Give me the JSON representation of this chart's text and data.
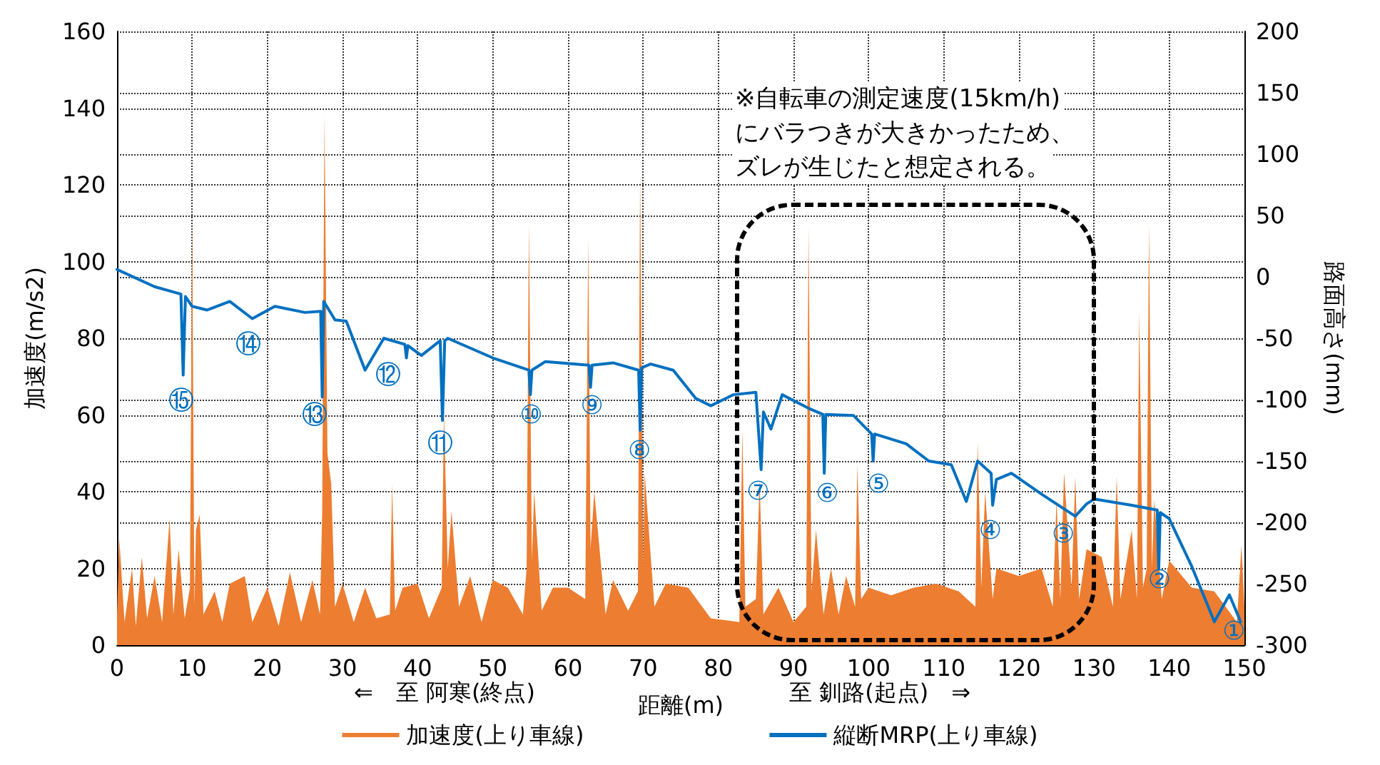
{
  "chart_data": {
    "type": "area",
    "xlabel": "距離(m)",
    "ylabel": "加速度(m/s2)",
    "y2label": "路面高さ(mm)",
    "xlim": [
      0,
      150
    ],
    "xticks": [
      0,
      10,
      20,
      30,
      40,
      50,
      60,
      70,
      80,
      90,
      100,
      110,
      120,
      130,
      140,
      150
    ],
    "ylim": [
      0,
      160
    ],
    "yticks": [
      0,
      20,
      40,
      60,
      80,
      100,
      120,
      140,
      160
    ],
    "y2lim": [
      -300,
      200
    ],
    "y2ticks": [
      -300,
      -250,
      -200,
      -150,
      -100,
      -50,
      0,
      50,
      100,
      150,
      200
    ],
    "grid": true,
    "legend": "bottom",
    "series": [
      {
        "name": "加速度(上り車線)",
        "color": "#ed7d31",
        "x": [
          0,
          0.3,
          1,
          2,
          2.5,
          3.3,
          4,
          5,
          6,
          7,
          7.5,
          8.2,
          9,
          9.7,
          10,
          10.3,
          10.5,
          11,
          11.5,
          13,
          14,
          15,
          17,
          18,
          20,
          21.5,
          23,
          24.5,
          26,
          27,
          27.3,
          27.6,
          28,
          28.5,
          29,
          30,
          31.5,
          33,
          34.5,
          36.3,
          36.6,
          37,
          38,
          40,
          41.5,
          43.2,
          43.5,
          44,
          44.5,
          45.5,
          47,
          48.5,
          50,
          52,
          54,
          54.5,
          54.8,
          55.2,
          55.5,
          56.5,
          58,
          60,
          62.3,
          62.7,
          63,
          63.5,
          65,
          66,
          68,
          69.3,
          69.6,
          70,
          70.2,
          71.5,
          73,
          76,
          79,
          82.8,
          83.2,
          83.6,
          85,
          85.5,
          86,
          88,
          90,
          91.7,
          92,
          92.4,
          93,
          94,
          95,
          96,
          97,
          98.2,
          98.5,
          99,
          100,
          103,
          106,
          109,
          112,
          114.2,
          114.5,
          115,
          115.5,
          116.5,
          117,
          120,
          123,
          124.5,
          125,
          125.5,
          126,
          127,
          127.5,
          128,
          129,
          131,
          132.5,
          133,
          133.5,
          135,
          135.7,
          136,
          136.5,
          137,
          137.3,
          137.7,
          138,
          139,
          140,
          143,
          146,
          149,
          149.6,
          150
        ],
        "values": [
          8,
          28,
          6,
          20,
          5,
          23,
          7,
          18,
          6,
          33,
          8,
          25,
          7,
          15,
          111,
          10,
          30,
          34,
          8,
          14,
          6,
          16,
          18,
          6,
          15,
          5,
          19,
          6,
          17,
          8,
          35,
          138,
          50,
          42,
          10,
          16,
          6,
          15,
          7,
          8,
          42,
          9,
          15,
          16,
          7,
          15,
          61,
          20,
          35,
          10,
          18,
          6,
          17,
          15,
          8,
          20,
          110,
          22,
          40,
          9,
          15,
          15,
          12,
          106,
          25,
          40,
          8,
          17,
          9,
          14,
          123,
          20,
          45,
          10,
          16,
          15,
          7,
          6,
          56,
          10,
          12,
          43,
          8,
          15,
          6,
          10,
          109,
          14,
          30,
          8,
          20,
          8,
          18,
          10,
          47,
          12,
          15,
          13,
          15,
          16,
          14,
          10,
          53,
          15,
          40,
          12,
          20,
          18,
          20,
          10,
          38,
          12,
          45,
          15,
          44,
          12,
          25,
          23,
          10,
          44,
          12,
          30,
          12,
          87,
          15,
          20,
          110,
          20,
          38,
          12,
          22,
          15,
          14,
          6,
          26,
          10
        ]
      },
      {
        "name": "縦断MRP(上り車線)",
        "type": "line",
        "axis": "y2",
        "color": "#0070c0",
        "x": [
          0,
          5,
          8.5,
          8.8,
          9.1,
          10,
          12,
          15,
          18,
          21,
          25,
          27.1,
          27.3,
          27.5,
          29,
          30.5,
          33,
          35.5,
          38.3,
          38.5,
          38.7,
          40.5,
          43,
          43.3,
          43.6,
          44,
          50,
          54.8,
          55,
          55.2,
          57,
          62.8,
          63,
          63.2,
          66,
          69.4,
          69.6,
          69.8,
          71,
          74,
          77,
          79,
          82,
          85,
          85.7,
          86,
          87,
          88.5,
          92,
          93.9,
          94.1,
          94.3,
          98,
          100.4,
          100.6,
          100.8,
          105,
          108,
          111,
          113,
          114.5,
          116.3,
          116.5,
          117,
          119,
          123,
          126,
          127.5,
          129,
          130,
          135,
          138.4,
          138.6,
          138.8,
          140,
          143,
          146,
          148,
          149.5
        ],
        "values": [
          6,
          -8,
          -14,
          -80,
          -16,
          -24,
          -27,
          -20,
          -34,
          -24,
          -29,
          -28,
          -98,
          -20,
          -35,
          -36,
          -76,
          -50,
          -55,
          -66,
          -56,
          -64,
          -52,
          -117,
          -52,
          -50,
          -66,
          -76,
          -96,
          -76,
          -69,
          -72,
          -90,
          -72,
          -70,
          -76,
          -125,
          -74,
          -71,
          -76,
          -99,
          -105,
          -96,
          -94,
          -157,
          -110,
          -124,
          -96,
          -107,
          -112,
          -160,
          -112,
          -113,
          -128,
          -150,
          -128,
          -136,
          -150,
          -153,
          -183,
          -150,
          -160,
          -186,
          -165,
          -160,
          -177,
          -189,
          -195,
          -185,
          -181,
          -186,
          -190,
          -238,
          -192,
          -197,
          -236,
          -281,
          -259,
          -281
        ]
      }
    ],
    "annotations": [
      "※自転車の測定速度(15km/h)",
      "にバラつきが大きかったため、",
      "ズレが生じたと想定される。",
      "⇐　至 阿寒(終点)",
      "至 釧路(起点)　⇒",
      "⑮",
      "⑭",
      "⑬",
      "⑫",
      "⑪",
      "⑩",
      "⑨",
      "⑧",
      "⑦",
      "⑥",
      "⑤",
      "④",
      "③",
      "②",
      "①"
    ]
  }
}
